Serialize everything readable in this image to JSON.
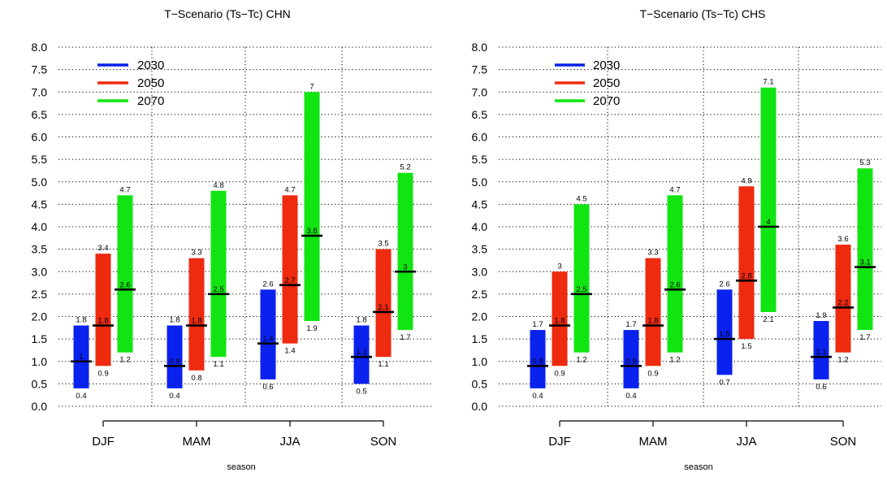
{
  "chart_data": [
    {
      "type": "bar",
      "subtype": "floating-range-with-median",
      "title": "T−Scenario (Ts−Tc) CHN",
      "xlabel": "season",
      "ylabel": "",
      "ylim": [
        0.0,
        8.0
      ],
      "yticks": [
        "0.0",
        "0.5",
        "1.0",
        "1.5",
        "2.0",
        "2.5",
        "3.0",
        "3.5",
        "4.0",
        "4.5",
        "5.0",
        "5.5",
        "6.0",
        "6.5",
        "7.0",
        "7.5",
        "8.0"
      ],
      "grid": true,
      "legend_position": "top-left",
      "categories": [
        "DJF",
        "MAM",
        "JJA",
        "SON"
      ],
      "series": [
        {
          "name": "2030",
          "color": "#0a22ee",
          "low": [
            0.4,
            0.4,
            0.6,
            0.5
          ],
          "high": [
            1.8,
            1.8,
            2.6,
            1.8
          ],
          "median": [
            1,
            0.9,
            1.4,
            1.1
          ],
          "low_labels": [
            "0.4",
            "0.4",
            "0.6",
            "0.5"
          ],
          "high_labels": [
            "1.8",
            "1.8",
            "2.6",
            "1.8"
          ],
          "median_labels": [
            "1",
            "0.9",
            "1.4",
            "1.1"
          ]
        },
        {
          "name": "2050",
          "color": "#ee2a0f",
          "low": [
            0.9,
            0.8,
            1.4,
            1.1
          ],
          "high": [
            3.4,
            3.3,
            4.7,
            3.5
          ],
          "median": [
            1.8,
            1.8,
            2.7,
            2.1
          ],
          "low_labels": [
            "0.9",
            "0.8",
            "1.4",
            "1.1"
          ],
          "high_labels": [
            "3.4",
            "3.3",
            "4.7",
            "3.5"
          ],
          "median_labels": [
            "1.8",
            "1.8",
            "2.7",
            "2.1"
          ]
        },
        {
          "name": "2070",
          "color": "#11e511",
          "low": [
            1.2,
            1.1,
            1.9,
            1.7
          ],
          "high": [
            4.7,
            4.8,
            7,
            5.2
          ],
          "median": [
            2.6,
            2.5,
            3.8,
            3
          ],
          "low_labels": [
            "1.2",
            "1.1",
            "1.9",
            "1.7"
          ],
          "high_labels": [
            "4.7",
            "4.8",
            "7",
            "5.2"
          ],
          "median_labels": [
            "2.6",
            "2.5",
            "3.8",
            "3"
          ]
        }
      ]
    },
    {
      "type": "bar",
      "subtype": "floating-range-with-median",
      "title": "T−Scenario (Ts−Tc) CHS",
      "xlabel": "season",
      "ylabel": "",
      "ylim": [
        0.0,
        8.0
      ],
      "yticks": [
        "0.0",
        "0.5",
        "1.0",
        "1.5",
        "2.0",
        "2.5",
        "3.0",
        "3.5",
        "4.0",
        "4.5",
        "5.0",
        "5.5",
        "6.0",
        "6.5",
        "7.0",
        "7.5",
        "8.0"
      ],
      "grid": true,
      "legend_position": "top-left",
      "categories": [
        "DJF",
        "MAM",
        "JJA",
        "SON"
      ],
      "series": [
        {
          "name": "2030",
          "color": "#0a22ee",
          "low": [
            0.4,
            0.4,
            0.7,
            0.6
          ],
          "high": [
            1.7,
            1.7,
            2.6,
            1.9
          ],
          "median": [
            0.9,
            0.9,
            1.5,
            1.1
          ],
          "low_labels": [
            "0.4",
            "0.4",
            "0.7",
            "0.6"
          ],
          "high_labels": [
            "1.7",
            "1.7",
            "2.6",
            "1.9"
          ],
          "median_labels": [
            "0.9",
            "0.9",
            "1.5",
            "1.1"
          ]
        },
        {
          "name": "2050",
          "color": "#ee2a0f",
          "low": [
            0.9,
            0.9,
            1.5,
            1.2
          ],
          "high": [
            3,
            3.3,
            4.9,
            3.6
          ],
          "median": [
            1.8,
            1.8,
            2.8,
            2.2
          ],
          "low_labels": [
            "0.9",
            "0.9",
            "1.5",
            "1.2"
          ],
          "high_labels": [
            "3",
            "3.3",
            "4.9",
            "3.6"
          ],
          "median_labels": [
            "1.8",
            "1.8",
            "2.8",
            "2.2"
          ]
        },
        {
          "name": "2070",
          "color": "#11e511",
          "low": [
            1.2,
            1.2,
            2.1,
            1.7
          ],
          "high": [
            4.5,
            4.7,
            7.1,
            5.3
          ],
          "median": [
            2.5,
            2.6,
            4,
            3.1
          ],
          "low_labels": [
            "1.2",
            "1.2",
            "2.1",
            "1.7"
          ],
          "high_labels": [
            "4.5",
            "4.7",
            "7.1",
            "5.3"
          ],
          "median_labels": [
            "2.5",
            "2.6",
            "4",
            "3.1"
          ]
        }
      ]
    }
  ]
}
